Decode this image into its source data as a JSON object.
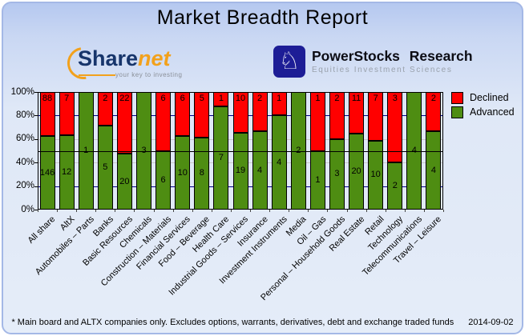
{
  "title": "Market Breadth Report",
  "logos": {
    "sharenet": {
      "name_part1": "Share",
      "name_part2": "net",
      "tagline": "your key to investing"
    },
    "powerstocks": {
      "icon": "knight-icon",
      "knight_glyph": "♘",
      "title": "PowerStocks Research",
      "subtitle": "Equities Investment Sciences"
    }
  },
  "chart_data": {
    "type": "bar",
    "stacked": true,
    "normalized_to_percent": true,
    "categories": [
      "All share",
      "AltX",
      "Automobiles – Parts",
      "Banks",
      "Basic Resources",
      "Chemicals",
      "Construction – Materials",
      "Financial Services",
      "Food – Beverage",
      "Health Care",
      "Industrial Goods – Services",
      "Insurance",
      "Investment Instruments",
      "Media",
      "Oil – Gas",
      "Personal – Household Goods",
      "Real Estate",
      "Retail",
      "Technology",
      "Telecommunications",
      "Travel – Leisure"
    ],
    "series": [
      {
        "name": "Declined",
        "color": "#ff0000",
        "values": [
          88,
          7,
          0,
          2,
          22,
          0,
          6,
          6,
          5,
          1,
          10,
          2,
          1,
          0,
          1,
          2,
          11,
          7,
          3,
          0,
          2
        ]
      },
      {
        "name": "Advanced",
        "color": "#4e8d12",
        "values": [
          146,
          12,
          1,
          5,
          20,
          3,
          6,
          10,
          8,
          7,
          19,
          4,
          4,
          2,
          1,
          3,
          20,
          10,
          2,
          4,
          4
        ]
      }
    ],
    "y_axis": {
      "ticks": [
        "100%",
        "80%",
        "60%",
        "40%",
        "20%",
        "0%"
      ],
      "min": 0,
      "max": 100
    },
    "gridlines": [
      {
        "pct": 80,
        "color": "#00008b",
        "front": false
      },
      {
        "pct": 60,
        "color": "#c9c9c9",
        "front": false
      },
      {
        "pct": 40,
        "color": "#c9c9c9",
        "front": false
      },
      {
        "pct": 20,
        "color": "#00008b",
        "front": false
      },
      {
        "pct": 50,
        "color": "#000000",
        "front": true
      }
    ],
    "legend_position": "right-top",
    "legend": [
      "Declined",
      "Advanced"
    ]
  },
  "footer": {
    "note": "* Main board and ALTX companies only. Excludes options, warrants, derivatives, debt and exchange traded funds",
    "date": "2014-09-02"
  }
}
